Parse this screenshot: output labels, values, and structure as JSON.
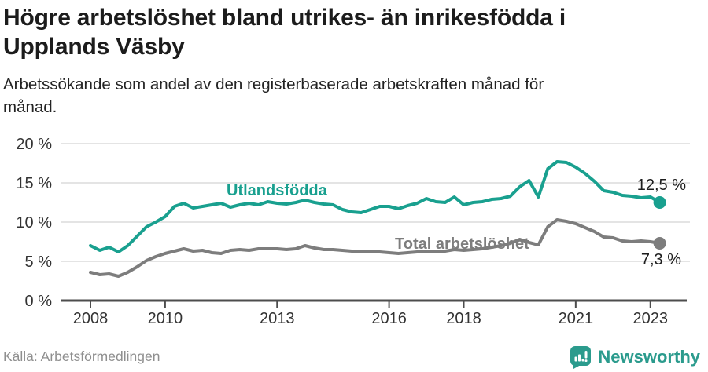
{
  "header": {
    "title_lines": [
      "Högre arbetslöshet bland utrikes- än inrikesfödda i",
      "Upplands Väsby"
    ],
    "subtitle_lines": [
      "Arbetssökande som andel av den registerbaserade arbetskraften månad för",
      "månad."
    ]
  },
  "chart_data": {
    "type": "line",
    "title": "Högre arbetslöshet bland utrikes- än inrikesfödda i Upplands Väsby",
    "subtitle": "Arbetssökande som andel av den registerbaserade arbetskraften månad för månad.",
    "x_unit": "year (quarterly samples, Jan 2008 – Apr 2023)",
    "x_start": 2008.0,
    "x_step": 0.25,
    "ylim": [
      0,
      20
    ],
    "grid": "horizontal",
    "legend_position": "inline-labels",
    "series": [
      {
        "name": "Utlandsfödda",
        "color": "#19a08f",
        "end_label": "12,5 %",
        "end_value": 12.5,
        "values": [
          7.0,
          6.4,
          6.8,
          6.2,
          7.0,
          8.2,
          9.4,
          10.0,
          10.7,
          12.0,
          12.4,
          11.8,
          12.0,
          12.2,
          12.4,
          11.9,
          12.2,
          12.4,
          12.2,
          12.6,
          12.4,
          12.3,
          12.5,
          12.8,
          12.5,
          12.3,
          12.2,
          11.6,
          11.3,
          11.2,
          11.6,
          12.0,
          12.0,
          11.7,
          12.1,
          12.4,
          13.0,
          12.6,
          12.5,
          13.2,
          12.2,
          12.5,
          12.6,
          12.9,
          13.0,
          13.3,
          14.5,
          15.3,
          13.2,
          16.8,
          17.7,
          17.6,
          17.0,
          16.2,
          15.2,
          14.0,
          13.8,
          13.4,
          13.3,
          13.1,
          13.2,
          12.5
        ]
      },
      {
        "name": "Total arbetslöshet",
        "color": "#7d7d7d",
        "end_label": "7,3 %",
        "end_value": 7.3,
        "values": [
          3.6,
          3.3,
          3.4,
          3.1,
          3.6,
          4.3,
          5.1,
          5.6,
          6.0,
          6.3,
          6.6,
          6.3,
          6.4,
          6.1,
          6.0,
          6.4,
          6.5,
          6.4,
          6.6,
          6.6,
          6.6,
          6.5,
          6.6,
          7.0,
          6.7,
          6.5,
          6.5,
          6.4,
          6.3,
          6.2,
          6.2,
          6.2,
          6.1,
          6.0,
          6.1,
          6.2,
          6.3,
          6.2,
          6.3,
          6.5,
          6.4,
          6.5,
          6.6,
          6.8,
          7.0,
          7.3,
          7.8,
          7.4,
          7.1,
          9.4,
          10.3,
          10.1,
          9.8,
          9.3,
          8.8,
          8.1,
          8.0,
          7.6,
          7.5,
          7.6,
          7.5,
          7.3
        ]
      }
    ],
    "x_ticks": [
      {
        "value": 2008,
        "label": "2008"
      },
      {
        "value": 2010,
        "label": "2010"
      },
      {
        "value": 2013,
        "label": "2013"
      },
      {
        "value": 2016,
        "label": "2016"
      },
      {
        "value": 2018,
        "label": "2018"
      },
      {
        "value": 2021,
        "label": "2021"
      },
      {
        "value": 2023,
        "label": "2023"
      }
    ],
    "y_ticks": [
      {
        "value": 0,
        "label": "0 %"
      },
      {
        "value": 5,
        "label": "5 %"
      },
      {
        "value": 10,
        "label": "10 %"
      },
      {
        "value": 15,
        "label": "15 %"
      },
      {
        "value": 20,
        "label": "20 %"
      }
    ]
  },
  "footer": {
    "source": "Källa: Arbetsförmedlingen",
    "logo_text": "Newsworthy"
  },
  "colors": {
    "accent_teal": "#19a08f",
    "line_gray": "#7d7d7d",
    "grid": "#dcdcdc",
    "axis": "#4d4d4d",
    "tick_text": "#333333",
    "logo_teal": "#2b9b8d"
  }
}
